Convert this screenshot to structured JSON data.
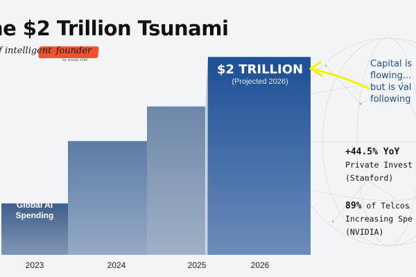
{
  "title": "he $2 Trillion Tsunami",
  "brand": {
    "prefix": "f intelligent",
    "accent": "founder",
    "sub": "by anoop shiel"
  },
  "chart_data": {
    "type": "bar",
    "categories": [
      "2023",
      "2024",
      "2025",
      "2026"
    ],
    "values": [
      0.52,
      1.15,
      1.5,
      2.0
    ],
    "unit": "trillion USD",
    "ylim": [
      0,
      2.1
    ],
    "grid": false,
    "bar_labels": {
      "2023": "Global AI Spending",
      "2026": "$2 TRILLION",
      "2026_sub": "(Projected 2026)"
    },
    "colors": {
      "bar_2023": "#3d5f8c",
      "bar_2024": "#5b7ca5",
      "bar_2025": "#6d87a8",
      "bar_2026": "#1d4f95",
      "arrow": "#f5f20a"
    }
  },
  "callout": {
    "line1": "Capital is",
    "line2": "flowing...",
    "line3": "but is val",
    "line4": "following"
  },
  "stats": [
    {
      "value": "+44.5% YoY",
      "line1": "Private Invest",
      "line2": "(Stanford)"
    },
    {
      "value": "89%",
      "value_suffix": " of Telcos",
      "line1": "Increasing Spe",
      "line2": "(NVIDIA)"
    }
  ]
}
